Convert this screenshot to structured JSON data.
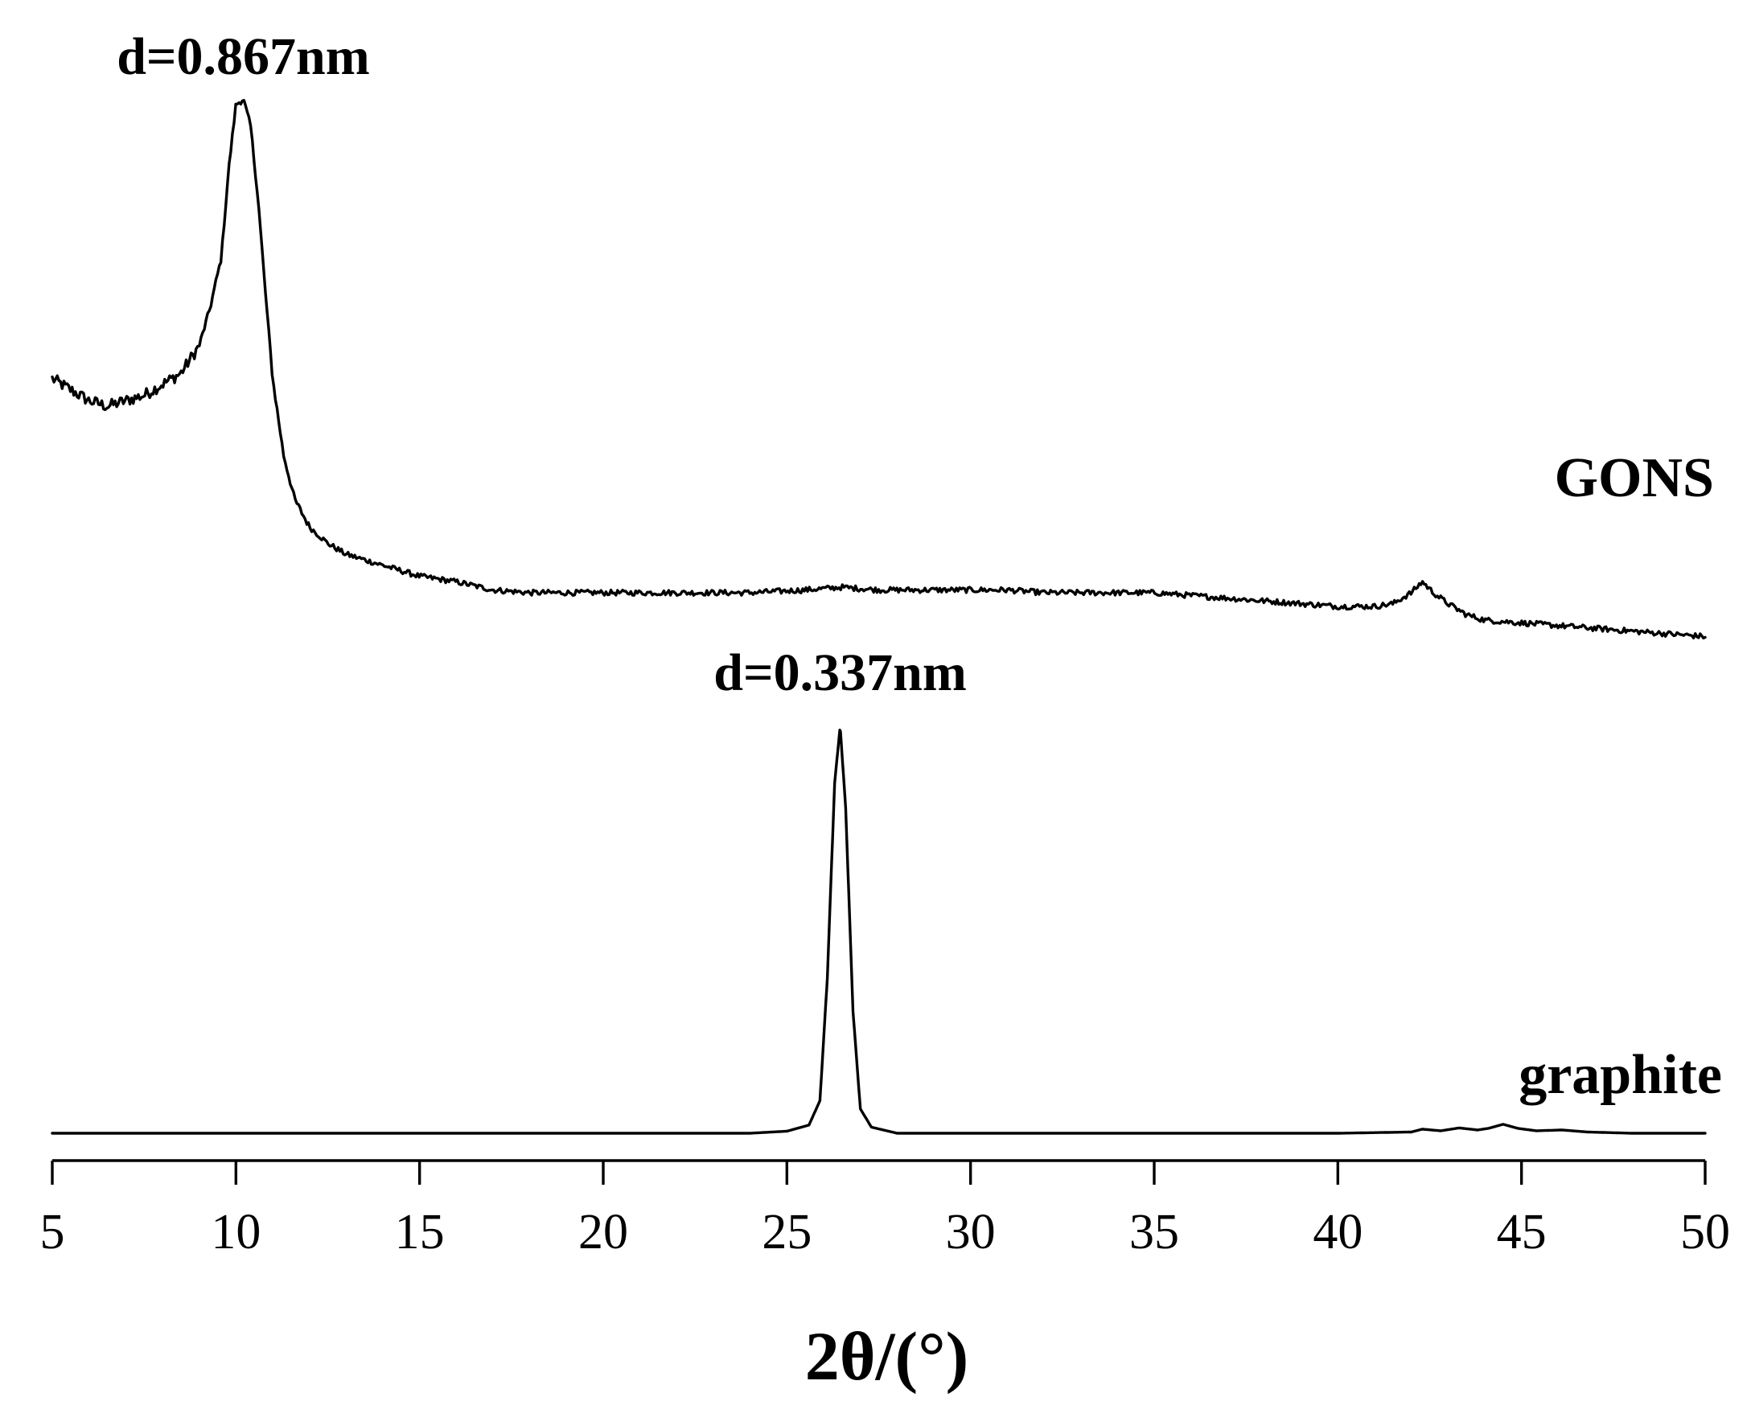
{
  "chart_data": {
    "type": "line",
    "title": "",
    "xlabel": "2θ/(°)",
    "ylabel": "",
    "xlim": [
      5,
      50
    ],
    "xticks": [
      5,
      10,
      15,
      20,
      25,
      30,
      35,
      40,
      45,
      50
    ],
    "xtick_labels": [
      "5",
      "10",
      "15",
      "20",
      "25",
      "30",
      "35",
      "40",
      "45",
      "50"
    ],
    "y_axis_shown": false,
    "grid": false,
    "legend": "none",
    "y_units": "relative intensity (unlabeled, offset traces)",
    "series": [
      {
        "name": "GONS",
        "x": [
          5,
          5.5,
          6,
          6.5,
          7,
          7.5,
          8,
          8.5,
          9,
          9.3,
          9.6,
          9.8,
          10,
          10.2,
          10.4,
          10.6,
          10.8,
          11,
          11.3,
          11.6,
          12,
          12.5,
          13,
          14,
          15,
          16,
          17,
          18,
          20,
          22,
          24,
          25.5,
          26.5,
          27.5,
          28.5,
          30,
          31,
          32,
          33,
          34,
          35,
          36,
          37,
          38,
          39,
          40,
          41,
          41.5,
          42,
          42.3,
          42.6,
          43,
          43.5,
          44,
          45,
          46,
          47,
          48,
          49,
          50
        ],
        "y": [
          0.72,
          0.7,
          0.68,
          0.67,
          0.68,
          0.69,
          0.71,
          0.73,
          0.78,
          0.85,
          0.94,
          1.1,
          1.22,
          1.23,
          1.18,
          1.05,
          0.88,
          0.72,
          0.58,
          0.5,
          0.45,
          0.42,
          0.4,
          0.38,
          0.36,
          0.35,
          0.335,
          0.33,
          0.33,
          0.33,
          0.33,
          0.335,
          0.34,
          0.335,
          0.335,
          0.335,
          0.335,
          0.33,
          0.33,
          0.33,
          0.33,
          0.325,
          0.32,
          0.315,
          0.31,
          0.305,
          0.305,
          0.31,
          0.33,
          0.35,
          0.33,
          0.31,
          0.29,
          0.28,
          0.275,
          0.27,
          0.265,
          0.26,
          0.255,
          0.25
        ]
      },
      {
        "name": "graphite",
        "x": [
          5,
          10,
          15,
          20,
          24,
          25,
          25.6,
          25.9,
          26.1,
          26.3,
          26.45,
          26.6,
          26.8,
          27,
          27.3,
          28,
          30,
          35,
          40,
          42,
          42.3,
          42.8,
          43.3,
          43.8,
          44.1,
          44.5,
          44.9,
          45.4,
          46.1,
          46.8,
          48,
          50
        ],
        "y": [
          0,
          0,
          0,
          0,
          0,
          0.005,
          0.02,
          0.08,
          0.38,
          0.86,
          1.0,
          0.8,
          0.3,
          0.06,
          0.015,
          0,
          0,
          0,
          0,
          0.003,
          0.01,
          0.006,
          0.013,
          0.008,
          0.012,
          0.022,
          0.012,
          0.006,
          0.008,
          0.003,
          0,
          0
        ]
      }
    ],
    "annotations": [
      {
        "text": "d=0.867nm",
        "series": "GONS",
        "x": 10.2
      },
      {
        "text": "d=0.337nm",
        "series": "graphite",
        "x": 26.45
      }
    ],
    "series_labels": [
      {
        "text": "GONS",
        "series": "GONS"
      },
      {
        "text": "graphite",
        "series": "graphite"
      }
    ]
  }
}
